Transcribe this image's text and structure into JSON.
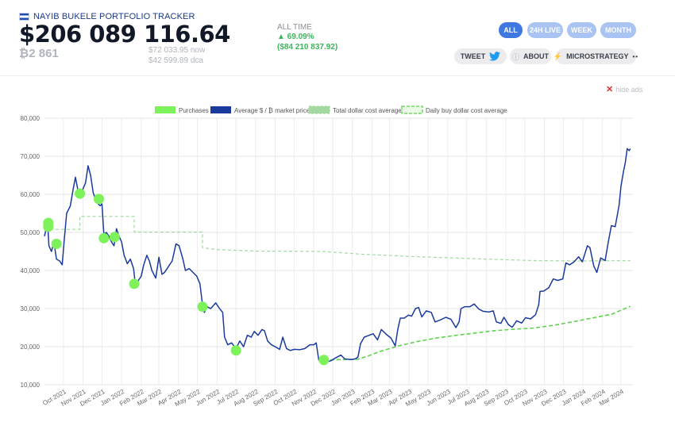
{
  "header": {
    "brand": "NAYIB BUKELE PORTFOLIO TRACKER",
    "portfolio_value": "$206 089 116.64",
    "btc_amount": "₿2 861",
    "now_price": "$72 033.95 now",
    "dca_price": "$42 599.89 dca",
    "alltime_label": "ALL TIME",
    "alltime_pct": "▲ 69.09%",
    "alltime_usd": "($84 210 837.92)"
  },
  "range_buttons": [
    "ALL",
    "24H LIVE",
    "WEEK",
    "MONTH"
  ],
  "active_range": "ALL",
  "actions": {
    "tweet": "TWEET",
    "about": "ABOUT",
    "microstrategy": "MICROSTRATEGY"
  },
  "icons": {
    "flag": "el-salvador-flag-icon",
    "twitter": "twitter-bird-icon",
    "about": "info-icon",
    "microstrategy": "lightning-icon",
    "close": "close-icon"
  },
  "hide_ads": "hide ads",
  "colors": {
    "price": "#1b3a9e",
    "purchases": "#7df25a",
    "total_dca": "#a3d9a0",
    "daily_dca": "#5bd34a",
    "button_active": "#3e78e0",
    "button": "#a9c4f2",
    "gain": "#3cb55a"
  },
  "chart_data": {
    "type": "line",
    "legend": [
      "Purchases",
      "Average $ / ₿ market price",
      "Total dollar cost average",
      "Daily buy dollar cost average"
    ],
    "legend_position": "top",
    "grid": true,
    "ylim": [
      10000,
      80000
    ],
    "yticks": [
      10000,
      20000,
      30000,
      40000,
      50000,
      60000,
      70000,
      80000
    ],
    "ytick_labels": [
      "10,000",
      "20,000",
      "30,000",
      "40,000",
      "50,000",
      "60,000",
      "70,000",
      "80,000"
    ],
    "xlim": [
      "2021-09-01",
      "2024-03-20"
    ],
    "xticks": [
      "2021-10-01",
      "2021-11-01",
      "2021-12-01",
      "2022-01-01",
      "2022-02-01",
      "2022-03-01",
      "2022-04-01",
      "2022-05-01",
      "2022-06-01",
      "2022-07-01",
      "2022-08-01",
      "2022-09-01",
      "2022-10-01",
      "2022-11-01",
      "2022-12-01",
      "2023-01-01",
      "2023-02-01",
      "2023-03-01",
      "2023-04-01",
      "2023-05-01",
      "2023-06-01",
      "2023-07-01",
      "2023-08-01",
      "2023-09-01",
      "2023-10-01",
      "2023-11-01",
      "2023-12-01",
      "2024-01-01",
      "2024-02-01",
      "2024-03-01"
    ],
    "xtick_labels": [
      "Oct 2021",
      "Nov 2021",
      "Dec 2021",
      "Jan 2022",
      "Feb 2022",
      "Mar 2022",
      "Apr 2022",
      "May 2022",
      "Jun 2022",
      "Jul 2022",
      "Aug 2022",
      "Sep 2022",
      "Oct 2022",
      "Nov 2022",
      "Dec 2022",
      "Jan 2023",
      "Feb 2023",
      "Mar 2023",
      "Apr 2023",
      "May 2023",
      "Jun 2023",
      "Jul 2023",
      "Aug 2023",
      "Sep 2023",
      "Oct 2023",
      "Nov 2023",
      "Dec 2023",
      "Jan 2024",
      "Feb 2024",
      "Mar 2024"
    ],
    "series": [
      {
        "name": "Average $ / ₿ market price",
        "style": "line",
        "points": [
          [
            "2021-09-01",
            49000
          ],
          [
            "2021-09-03",
            50500
          ],
          [
            "2021-09-06",
            52500
          ],
          [
            "2021-09-08",
            46500
          ],
          [
            "2021-09-12",
            45000
          ],
          [
            "2021-09-16",
            47500
          ],
          [
            "2021-09-20",
            43000
          ],
          [
            "2021-09-25",
            42500
          ],
          [
            "2021-09-29",
            41500
          ],
          [
            "2021-10-02",
            47500
          ],
          [
            "2021-10-06",
            55000
          ],
          [
            "2021-10-12",
            57000
          ],
          [
            "2021-10-16",
            61000
          ],
          [
            "2021-10-20",
            64500
          ],
          [
            "2021-10-24",
            61000
          ],
          [
            "2021-10-28",
            59000
          ],
          [
            "2021-11-01",
            61500
          ],
          [
            "2021-11-05",
            63000
          ],
          [
            "2021-11-09",
            67500
          ],
          [
            "2021-11-13",
            65000
          ],
          [
            "2021-11-17",
            60500
          ],
          [
            "2021-11-21",
            58500
          ],
          [
            "2021-11-25",
            57500
          ],
          [
            "2021-11-28",
            57000
          ],
          [
            "2021-12-01",
            57500
          ],
          [
            "2021-12-04",
            49500
          ],
          [
            "2021-12-08",
            50000
          ],
          [
            "2021-12-12",
            49000
          ],
          [
            "2021-12-16",
            47500
          ],
          [
            "2021-12-20",
            46500
          ],
          [
            "2021-12-24",
            51000
          ],
          [
            "2021-12-28",
            49000
          ],
          [
            "2022-01-01",
            47500
          ],
          [
            "2022-01-05",
            44000
          ],
          [
            "2022-01-10",
            41800
          ],
          [
            "2022-01-15",
            43000
          ],
          [
            "2022-01-20",
            40500
          ],
          [
            "2022-01-23",
            36000
          ],
          [
            "2022-01-28",
            37500
          ],
          [
            "2022-02-01",
            38500
          ],
          [
            "2022-02-05",
            41500
          ],
          [
            "2022-02-10",
            44000
          ],
          [
            "2022-02-14",
            42500
          ],
          [
            "2022-02-18",
            40000
          ],
          [
            "2022-02-24",
            38000
          ],
          [
            "2022-03-01",
            43500
          ],
          [
            "2022-03-06",
            39000
          ],
          [
            "2022-03-10",
            39500
          ],
          [
            "2022-03-16",
            41000
          ],
          [
            "2022-03-22",
            42500
          ],
          [
            "2022-03-28",
            47000
          ],
          [
            "2022-04-02",
            46500
          ],
          [
            "2022-04-08",
            43000
          ],
          [
            "2022-04-12",
            40000
          ],
          [
            "2022-04-18",
            40500
          ],
          [
            "2022-04-24",
            39500
          ],
          [
            "2022-04-30",
            38500
          ],
          [
            "2022-05-05",
            36500
          ],
          [
            "2022-05-09",
            31000
          ],
          [
            "2022-05-12",
            29000
          ],
          [
            "2022-05-16",
            30500
          ],
          [
            "2022-05-22",
            30000
          ],
          [
            "2022-05-30",
            31500
          ],
          [
            "2022-06-05",
            30000
          ],
          [
            "2022-06-10",
            29000
          ],
          [
            "2022-06-13",
            22500
          ],
          [
            "2022-06-18",
            20500
          ],
          [
            "2022-06-24",
            21000
          ],
          [
            "2022-07-01",
            19500
          ],
          [
            "2022-07-07",
            21500
          ],
          [
            "2022-07-13",
            20000
          ],
          [
            "2022-07-19",
            23000
          ],
          [
            "2022-07-25",
            22500
          ],
          [
            "2022-07-30",
            24000
          ],
          [
            "2022-08-05",
            23000
          ],
          [
            "2022-08-11",
            24500
          ],
          [
            "2022-08-15",
            24200
          ],
          [
            "2022-08-20",
            21500
          ],
          [
            "2022-08-26",
            20500
          ],
          [
            "2022-09-01",
            20000
          ],
          [
            "2022-09-08",
            19300
          ],
          [
            "2022-09-13",
            22500
          ],
          [
            "2022-09-19",
            19500
          ],
          [
            "2022-09-25",
            19000
          ],
          [
            "2022-10-01",
            19300
          ],
          [
            "2022-10-10",
            19200
          ],
          [
            "2022-10-18",
            19500
          ],
          [
            "2022-10-26",
            20500
          ],
          [
            "2022-11-01",
            20500
          ],
          [
            "2022-11-05",
            21000
          ],
          [
            "2022-11-09",
            16500
          ],
          [
            "2022-11-14",
            16500
          ],
          [
            "2022-11-21",
            16000
          ],
          [
            "2022-11-28",
            16300
          ],
          [
            "2022-12-05",
            17000
          ],
          [
            "2022-12-14",
            17800
          ],
          [
            "2022-12-20",
            16800
          ],
          [
            "2022-12-30",
            16600
          ],
          [
            "2023-01-06",
            16800
          ],
          [
            "2023-01-10",
            17300
          ],
          [
            "2023-01-14",
            20800
          ],
          [
            "2023-01-20",
            22500
          ],
          [
            "2023-01-28",
            23000
          ],
          [
            "2023-02-03",
            23400
          ],
          [
            "2023-02-10",
            21800
          ],
          [
            "2023-02-16",
            24500
          ],
          [
            "2023-02-24",
            23200
          ],
          [
            "2023-03-03",
            22300
          ],
          [
            "2023-03-10",
            20200
          ],
          [
            "2023-03-14",
            24500
          ],
          [
            "2023-03-18",
            27500
          ],
          [
            "2023-03-24",
            27500
          ],
          [
            "2023-03-31",
            28300
          ],
          [
            "2023-04-05",
            28000
          ],
          [
            "2023-04-11",
            30000
          ],
          [
            "2023-04-16",
            30300
          ],
          [
            "2023-04-21",
            27800
          ],
          [
            "2023-04-28",
            29400
          ],
          [
            "2023-05-06",
            29000
          ],
          [
            "2023-05-12",
            26500
          ],
          [
            "2023-05-20",
            27000
          ],
          [
            "2023-05-29",
            27700
          ],
          [
            "2023-06-06",
            27200
          ],
          [
            "2023-06-14",
            25000
          ],
          [
            "2023-06-19",
            26500
          ],
          [
            "2023-06-22",
            30000
          ],
          [
            "2023-06-28",
            30500
          ],
          [
            "2023-07-06",
            30500
          ],
          [
            "2023-07-13",
            31200
          ],
          [
            "2023-07-20",
            29900
          ],
          [
            "2023-07-27",
            29300
          ],
          [
            "2023-08-05",
            29100
          ],
          [
            "2023-08-12",
            29400
          ],
          [
            "2023-08-17",
            26500
          ],
          [
            "2023-08-24",
            26100
          ],
          [
            "2023-08-29",
            27700
          ],
          [
            "2023-09-05",
            25800
          ],
          [
            "2023-09-11",
            25100
          ],
          [
            "2023-09-18",
            26800
          ],
          [
            "2023-09-26",
            26200
          ],
          [
            "2023-10-02",
            27600
          ],
          [
            "2023-10-10",
            27300
          ],
          [
            "2023-10-18",
            28400
          ],
          [
            "2023-10-23",
            31000
          ],
          [
            "2023-10-25",
            34500
          ],
          [
            "2023-10-31",
            34600
          ],
          [
            "2023-11-08",
            35500
          ],
          [
            "2023-11-15",
            37800
          ],
          [
            "2023-11-22",
            37400
          ],
          [
            "2023-11-30",
            37800
          ],
          [
            "2023-12-05",
            42000
          ],
          [
            "2023-12-11",
            41500
          ],
          [
            "2023-12-18",
            42300
          ],
          [
            "2023-12-25",
            43600
          ],
          [
            "2023-12-31",
            42300
          ],
          [
            "2024-01-08",
            46500
          ],
          [
            "2024-01-12",
            46000
          ],
          [
            "2024-01-18",
            41200
          ],
          [
            "2024-01-23",
            39500
          ],
          [
            "2024-01-29",
            43300
          ],
          [
            "2024-02-05",
            42600
          ],
          [
            "2024-02-10",
            47500
          ],
          [
            "2024-02-15",
            51800
          ],
          [
            "2024-02-21",
            51500
          ],
          [
            "2024-02-27",
            57000
          ],
          [
            "2024-03-01",
            62000
          ],
          [
            "2024-03-05",
            66000
          ],
          [
            "2024-03-08",
            68300
          ],
          [
            "2024-03-11",
            72000
          ],
          [
            "2024-03-14",
            71500
          ],
          [
            "2024-03-16",
            72000
          ]
        ]
      },
      {
        "name": "Total dollar cost average",
        "style": "dashed-step",
        "points": [
          [
            "2021-09-01",
            50800
          ],
          [
            "2021-10-27",
            50800
          ],
          [
            "2021-10-27",
            54200
          ],
          [
            "2022-01-21",
            54200
          ],
          [
            "2022-01-21",
            50100
          ],
          [
            "2022-05-09",
            50100
          ],
          [
            "2022-05-09",
            46000
          ],
          [
            "2022-06-01",
            45500
          ],
          [
            "2022-08-01",
            45100
          ],
          [
            "2022-11-17",
            45000
          ],
          [
            "2023-01-15",
            44300
          ],
          [
            "2023-04-01",
            43700
          ],
          [
            "2023-08-01",
            43000
          ],
          [
            "2023-10-15",
            42600
          ],
          [
            "2024-01-01",
            42500
          ],
          [
            "2024-03-16",
            42600
          ]
        ]
      },
      {
        "name": "Daily buy dollar cost average",
        "style": "dashed",
        "points": [
          [
            "2022-11-17",
            16500
          ],
          [
            "2022-12-15",
            16600
          ],
          [
            "2023-01-10",
            16700
          ],
          [
            "2023-01-25",
            17500
          ],
          [
            "2023-02-15",
            18800
          ],
          [
            "2023-03-15",
            20200
          ],
          [
            "2023-04-15",
            21400
          ],
          [
            "2023-05-15",
            22300
          ],
          [
            "2023-06-15",
            23000
          ],
          [
            "2023-07-15",
            23600
          ],
          [
            "2023-08-15",
            24200
          ],
          [
            "2023-09-15",
            24600
          ],
          [
            "2023-10-15",
            24900
          ],
          [
            "2023-11-15",
            25600
          ],
          [
            "2023-12-15",
            26500
          ],
          [
            "2024-01-15",
            27500
          ],
          [
            "2024-02-15",
            28500
          ],
          [
            "2024-03-16",
            30600
          ]
        ]
      },
      {
        "name": "Purchases",
        "style": "points",
        "points": [
          [
            "2021-09-07",
            51500
          ],
          [
            "2021-09-07",
            52500
          ],
          [
            "2021-09-20",
            47000
          ],
          [
            "2021-10-27",
            60200
          ],
          [
            "2021-11-26",
            58800
          ],
          [
            "2021-12-04",
            48500
          ],
          [
            "2021-12-21",
            48800
          ],
          [
            "2022-01-21",
            36500
          ],
          [
            "2022-05-09",
            30500
          ],
          [
            "2022-07-01",
            19000
          ],
          [
            "2022-11-17",
            16500
          ]
        ]
      }
    ]
  }
}
